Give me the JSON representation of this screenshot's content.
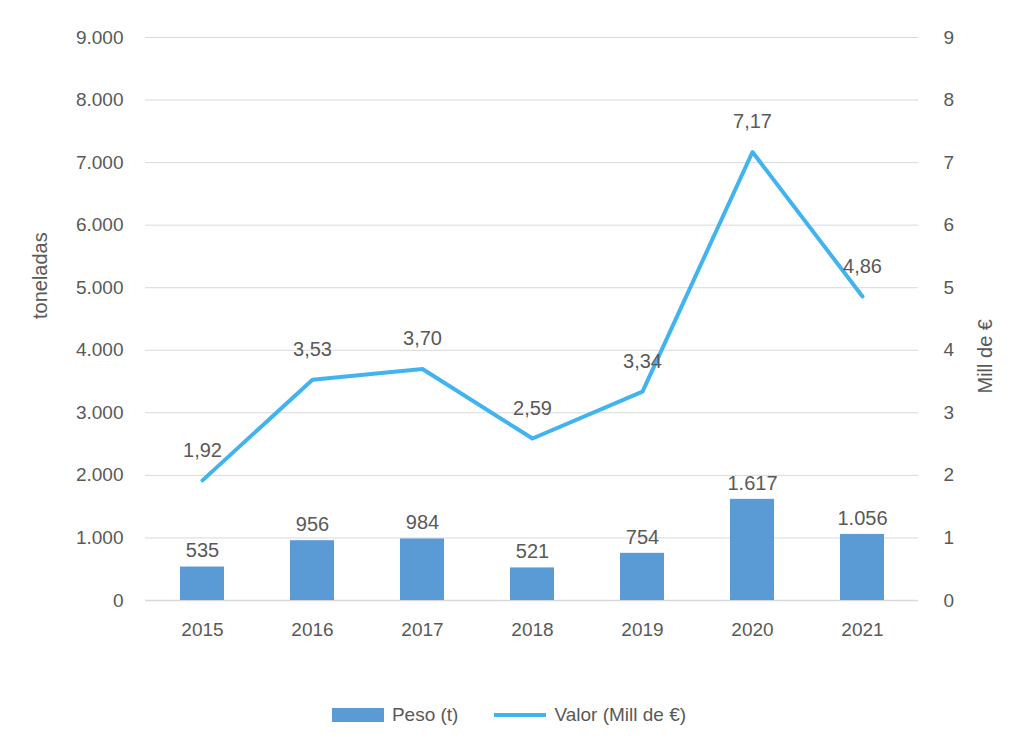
{
  "chart_data": {
    "type": "bar",
    "categories": [
      "2015",
      "2016",
      "2017",
      "2018",
      "2019",
      "2020",
      "2021"
    ],
    "series": [
      {
        "name": "Peso (t)",
        "type": "bar",
        "color": "#5b9bd5",
        "values": [
          535,
          956,
          984,
          521,
          754,
          1617,
          1056
        ],
        "value_labels": [
          "535",
          "956",
          "984",
          "521",
          "754",
          "1.617",
          "1.056"
        ]
      },
      {
        "name": "Valor (Mill de €)",
        "type": "line",
        "axis": "y2",
        "color": "#41b4f0",
        "values": [
          1.92,
          3.53,
          3.7,
          2.59,
          3.34,
          7.17,
          4.86
        ],
        "value_labels": [
          "1,92",
          "3,53",
          "3,70",
          "2,59",
          "3,34",
          "7,17",
          "4,86"
        ]
      }
    ],
    "ylabel": "toneladas",
    "y2label": "Mill de €",
    "ylim": [
      0,
      9000
    ],
    "yticks": [
      0,
      {
        "value": 1000,
        "label": "1.000"
      },
      {
        "value": 2000,
        "label": "2.000"
      },
      {
        "value": 3000,
        "label": "3.000"
      },
      {
        "value": 4000,
        "label": "4.000"
      },
      {
        "value": 5000,
        "label": "5.000"
      },
      {
        "value": 6000,
        "label": "6.000"
      },
      {
        "value": 7000,
        "label": "7.000"
      },
      {
        "value": 8000,
        "label": "8.000"
      },
      {
        "value": 9000,
        "label": "9.000"
      }
    ],
    "y2lim": [
      0,
      9
    ],
    "y2ticks": [
      0,
      1,
      2,
      3,
      4,
      5,
      6,
      7,
      8,
      9
    ],
    "grid": true,
    "data_labels": true,
    "legend": "bottom"
  }
}
